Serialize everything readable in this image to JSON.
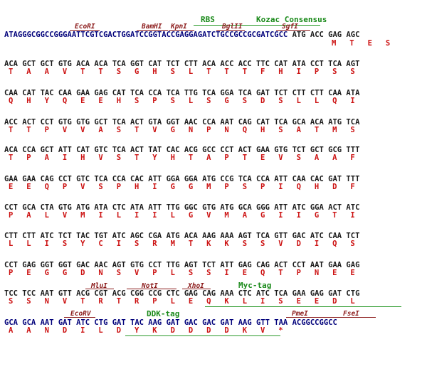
{
  "features": {
    "rbs": "RBS",
    "kozac": "Kozac Consensus",
    "myc_tag": "Myc-tag",
    "ddk_tag": "DDK-tag"
  },
  "enzymes": {
    "ecori": "EcoRI",
    "bamhi": "BamHI",
    "kpni": "KpnI",
    "bglii": "BglII",
    "sgfi": "SgfI",
    "mlui": "MluI",
    "noti": "NotI",
    "xhoi": "XhoI",
    "ecorv": "EcoRV",
    "pmei": "PmeI",
    "fsei": "FseI"
  },
  "header_seq": {
    "blue": "ATAGGGCGGCCGGGAATTCGTCGACTGGATCCGGTACCGAGGAGATCTGCCGCCGCGATCGCC",
    "codons": "ATG ACC GAG AGC",
    "aa": "M   T   E   S"
  },
  "rows": [
    {
      "seq": "ACA GCT GCT GTG ACA ACA TCA GGT CAT TCT CTT ACA ACC ACC TTC CAT ATA CCT TCA AGT",
      "aa": "T   A   A   V   T   T   S   G   H   S   L   T   T   T   F   H   I   P   S   S"
    },
    {
      "seq": "CAA CAT TAC CAA GAA GAG CAT TCA CCA TCA TTG TCA GGA TCA GAT TCT CTT CTT CAA ATA",
      "aa": "Q   H   Y   Q   E   E   H   S   P   S   L   S   G   S   D   S   L   L   Q   I"
    },
    {
      "seq": "ACC ACT CCT GTG GTG GCT TCA ACT GTA GGT AAC CCA AAT CAG CAT TCA GCA ACA ATG TCA",
      "aa": "T   T   P   V   V   A   S   T   V   G   N   P   N   Q   H   S   A   T   M   S"
    },
    {
      "seq": "ACA CCA GCT ATT CAT GTC TCA ACT TAT CAC ACG GCC CCT ACT GAA GTG TCT GCT GCG TTT",
      "aa": "T   P   A   I   H   V   S   T   Y   H   T   A   P   T   E   V   S   A   A   F"
    },
    {
      "seq": "GAA GAA CAG CCT GTC TCA CCA CAC ATT GGA GGA ATG CCG TCA CCA ATT CAA CAC GAT TTT",
      "aa": "E   E   Q   P   V   S   P   H   I   G   G   M   P   S   P   I   Q   H   D   F"
    },
    {
      "seq": "CCT GCA CTA GTG ATG ATA CTC ATA ATT TTG GGC GTG ATG GCA GGG ATT ATC GGA ACT ATC",
      "aa": "P   A   L   V   M   I   L   I   I   L   G   V   M   A   G   I   I   G   T   I"
    },
    {
      "seq": "CTT CTT ATC TCT TAC TGT ATC AGC CGA ATG ACA AAG AAA AGT TCA GTT GAC ATC CAA TCT",
      "aa": "L   L   I   S   Y   C   I   S   R   M   T   K   K   S   S   V   D   I   Q   S"
    },
    {
      "seq": "CCT GAG GGT GGT GAC AAC AGT GTG CCT TTG AGT TCT ATT GAG CAG ACT CCT AAT GAA GAG",
      "aa": "P   E   G   G   D   N   S   V   P   L   S   S   I   E   Q   T   P   N   E   E"
    },
    {
      "seq": "TCC TCC AAT GTT ACG CGT ACG CGG CCG CTC GAG CAG AAA CTC ATC TCA GAA GAG GAT CTG",
      "aa": "S   S   N   V   T   R   T   R   P   L   E   Q   K   L   I   S   E   E   D   L"
    },
    {
      "seq": "GCA GCA AAT GAT ATC CTG GAT TAC AAG GAT GAC GAC GAT AAG GTT TAA ACGGCCGGCC",
      "aa": "A   A   N   D   I   L   D   Y   K   D   D   D   D   K   V   *"
    }
  ]
}
